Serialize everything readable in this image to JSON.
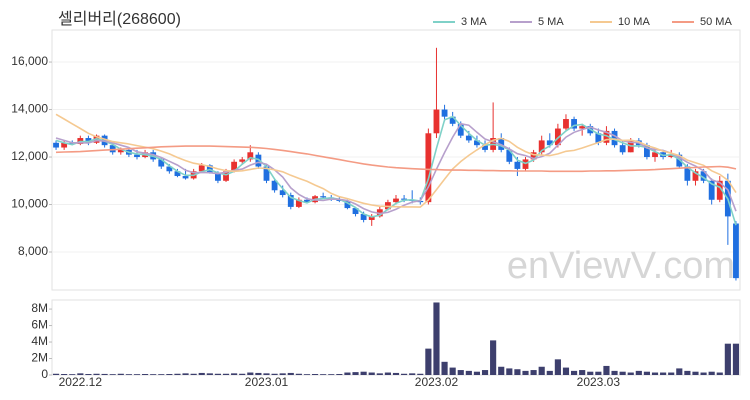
{
  "chart_data": [
    {
      "type": "candlestick",
      "title": "셀리버리(268600)",
      "watermark": "enViewV.com",
      "up_color": "#e8312f",
      "down_color": "#1f6fe0",
      "legend": "top-right",
      "grid": true,
      "ylim": [
        6400,
        17350
      ],
      "yticks": [
        {
          "value": 8000,
          "label": "8,000"
        },
        {
          "value": 10000,
          "label": "10,000"
        },
        {
          "value": 12000,
          "label": "12,000"
        },
        {
          "value": 14000,
          "label": "14,000"
        },
        {
          "value": 16000,
          "label": "16,000"
        }
      ],
      "open": [
        12600,
        12400,
        12600,
        12550,
        12800,
        12600,
        12900,
        12500,
        12200,
        12300,
        12100,
        12000,
        12200,
        11900,
        11600,
        11400,
        11200,
        11100,
        11400,
        11650,
        11350,
        11000,
        11400,
        11800,
        11900,
        12100,
        11600,
        11000,
        10600,
        10400,
        9900,
        10200,
        10100,
        10350,
        10300,
        10200,
        10150,
        9850,
        9600,
        9350,
        9500,
        9800,
        10100,
        10250,
        10200,
        10150,
        10100,
        13000,
        14000,
        13700,
        13400,
        12900,
        12700,
        12500,
        12300,
        12800,
        12300,
        11800,
        11500,
        11900,
        12200,
        12700,
        12500,
        13200,
        13600,
        13200,
        13300,
        13000,
        12600,
        13100,
        12500,
        12200,
        12700,
        12500,
        12000,
        12200,
        12000,
        12100,
        11600,
        11000,
        11400,
        11000,
        10200,
        11000,
        9200
      ],
      "high": [
        12700,
        12700,
        12700,
        12900,
        12900,
        12950,
        12950,
        12600,
        12400,
        12400,
        12300,
        12300,
        12300,
        12000,
        11700,
        11500,
        11500,
        11500,
        11750,
        11700,
        11400,
        11500,
        11900,
        12000,
        12500,
        12200,
        11700,
        11100,
        10800,
        10500,
        10300,
        10300,
        10400,
        10500,
        10400,
        10350,
        10200,
        9900,
        9700,
        9600,
        9900,
        10200,
        10400,
        10400,
        10600,
        10300,
        13200,
        16600,
        14200,
        13900,
        13500,
        13100,
        12900,
        12700,
        14300,
        13000,
        12400,
        12000,
        12000,
        12300,
        12900,
        13000,
        13400,
        13800,
        13700,
        13400,
        13400,
        13200,
        13300,
        13200,
        12700,
        12800,
        12800,
        12600,
        12300,
        12300,
        12300,
        12200,
        11700,
        11500,
        11500,
        11100,
        11200,
        11300,
        9300
      ],
      "low": [
        12300,
        12300,
        12500,
        12500,
        12500,
        12550,
        12400,
        12100,
        12100,
        12000,
        11900,
        11950,
        11800,
        11500,
        11300,
        11150,
        11050,
        11050,
        11350,
        11300,
        10900,
        10950,
        11350,
        11700,
        11800,
        11500,
        10900,
        10500,
        10300,
        9800,
        9850,
        10050,
        10050,
        10250,
        10150,
        10100,
        9800,
        9500,
        9250,
        9100,
        9450,
        9750,
        10000,
        10100,
        10050,
        10000,
        10000,
        12800,
        13500,
        13300,
        12800,
        12600,
        12400,
        12200,
        12200,
        12200,
        11700,
        11200,
        11400,
        11800,
        12100,
        12400,
        12400,
        13100,
        13100,
        12900,
        12900,
        12500,
        12500,
        12400,
        12100,
        12200,
        12400,
        11900,
        11800,
        11900,
        11950,
        11500,
        10800,
        10800,
        10900,
        10000,
        10100,
        8300,
        6800
      ],
      "close": [
        12400,
        12600,
        12550,
        12800,
        12600,
        12900,
        12500,
        12200,
        12300,
        12100,
        12000,
        12200,
        11900,
        11600,
        11400,
        11200,
        11100,
        11400,
        11650,
        11350,
        11000,
        11400,
        11800,
        11900,
        12200,
        11600,
        11000,
        10600,
        10400,
        9900,
        10200,
        10100,
        10350,
        10300,
        10200,
        10150,
        9850,
        9600,
        9350,
        9500,
        9800,
        10100,
        10250,
        10200,
        10150,
        10100,
        13000,
        14000,
        13700,
        13400,
        12900,
        12700,
        12500,
        12300,
        12800,
        12300,
        11800,
        11500,
        11900,
        12200,
        12700,
        12500,
        13200,
        13600,
        13200,
        13300,
        13000,
        12600,
        13100,
        12500,
        12200,
        12700,
        12500,
        12000,
        12200,
        12000,
        12100,
        11600,
        11000,
        11400,
        11000,
        10200,
        11000,
        9500,
        6900
      ],
      "series": [
        {
          "name": "3 MA",
          "color": "#7fd1c8",
          "values": [
            12700,
            12600,
            12520,
            12650,
            12650,
            12770,
            12670,
            12530,
            12330,
            12200,
            12130,
            12100,
            12030,
            11900,
            11630,
            11400,
            11230,
            11230,
            11380,
            11470,
            11330,
            11250,
            11400,
            11700,
            11970,
            11900,
            11600,
            11070,
            10670,
            10300,
            10170,
            10070,
            10220,
            10250,
            10280,
            10220,
            10070,
            9870,
            9600,
            9480,
            9550,
            9800,
            10050,
            10180,
            10200,
            10150,
            11080,
            12370,
            13570,
            13700,
            13330,
            13000,
            12700,
            12500,
            12530,
            12470,
            12300,
            11870,
            11730,
            11870,
            12270,
            12470,
            12800,
            13100,
            13330,
            13370,
            13170,
            12970,
            12900,
            12730,
            12600,
            12470,
            12470,
            12400,
            12230,
            12070,
            12100,
            11900,
            11570,
            11330,
            11130,
            10870,
            10730,
            10230,
            9130
          ]
        },
        {
          "name": "5 MA",
          "color": "#b7a0cc",
          "values": [
            12800,
            12700,
            12600,
            12600,
            12590,
            12690,
            12670,
            12600,
            12500,
            12400,
            12220,
            12160,
            12100,
            11980,
            11820,
            11660,
            11440,
            11340,
            11350,
            11340,
            11300,
            11360,
            11440,
            11490,
            11660,
            11780,
            11700,
            11460,
            11160,
            10700,
            10420,
            10240,
            10190,
            10170,
            10230,
            10220,
            10170,
            10020,
            9830,
            9690,
            9620,
            9670,
            9800,
            9970,
            10100,
            10160,
            10740,
            11490,
            12190,
            12840,
            13400,
            13340,
            13040,
            12760,
            12640,
            12520,
            12340,
            12140,
            12060,
            11940,
            12020,
            12160,
            12500,
            12840,
            13040,
            13160,
            13260,
            13140,
            13040,
            12900,
            12680,
            12620,
            12600,
            12380,
            12320,
            12280,
            12160,
            11980,
            11780,
            11620,
            11420,
            11040,
            10920,
            10620,
            9720
          ]
        },
        {
          "name": "10 MA",
          "color": "#f5c991",
          "values": [
            13800,
            13600,
            13400,
            13200,
            13000,
            12850,
            12750,
            12650,
            12600,
            12550,
            12480,
            12420,
            12350,
            12250,
            12130,
            11980,
            11850,
            11740,
            11680,
            11600,
            11500,
            11430,
            11400,
            11420,
            11480,
            11540,
            11520,
            11460,
            11380,
            11230,
            11100,
            10980,
            10820,
            10670,
            10470,
            10330,
            10250,
            10150,
            10050,
            9980,
            9930,
            9920,
            9910,
            9900,
            9900,
            9890,
            10190,
            10630,
            11070,
            11500,
            11810,
            12070,
            12300,
            12520,
            12710,
            12790,
            12660,
            12410,
            12230,
            12100,
            12080,
            12060,
            12130,
            12240,
            12280,
            12380,
            12500,
            12610,
            12730,
            12760,
            12700,
            12710,
            12640,
            12480,
            12380,
            12250,
            12160,
            12060,
            11870,
            11760,
            11650,
            11420,
            11270,
            11020,
            10500
          ]
        },
        {
          "name": "50 MA",
          "color": "#f49b84",
          "values": [
            12200,
            12210,
            12220,
            12230,
            12250,
            12270,
            12290,
            12310,
            12330,
            12350,
            12370,
            12390,
            12410,
            12430,
            12440,
            12450,
            12460,
            12460,
            12460,
            12460,
            12450,
            12440,
            12430,
            12420,
            12410,
            12390,
            12360,
            12320,
            12280,
            12230,
            12180,
            12130,
            12070,
            12010,
            11950,
            11890,
            11830,
            11770,
            11710,
            11660,
            11620,
            11580,
            11550,
            11530,
            11510,
            11490,
            11480,
            11470,
            11460,
            11450,
            11450,
            11440,
            11440,
            11430,
            11430,
            11420,
            11420,
            11410,
            11410,
            11410,
            11410,
            11400,
            11400,
            11400,
            11400,
            11400,
            11410,
            11410,
            11420,
            11420,
            11430,
            11440,
            11450,
            11460,
            11470,
            11490,
            11510,
            11530,
            11550,
            11560,
            11580,
            11590,
            11600,
            11570,
            11500
          ]
        }
      ]
    },
    {
      "type": "bar",
      "color": "#3d3f6d",
      "ylim": [
        0,
        9100000
      ],
      "yticks": [
        0,
        {
          "value": 2000000,
          "label": "2M"
        },
        {
          "value": 4000000,
          "label": "4M"
        },
        {
          "value": 6000000,
          "label": "6M"
        },
        {
          "value": 8000000,
          "label": "8M"
        }
      ],
      "categories": [
        null,
        null,
        null,
        "2022.12",
        null,
        null,
        null,
        null,
        null,
        null,
        null,
        null,
        null,
        null,
        null,
        null,
        null,
        null,
        null,
        null,
        null,
        null,
        null,
        null,
        null,
        null,
        "2023.01",
        null,
        null,
        null,
        null,
        null,
        null,
        null,
        null,
        null,
        null,
        null,
        null,
        null,
        null,
        null,
        null,
        null,
        null,
        null,
        null,
        "2023.02",
        null,
        null,
        null,
        null,
        null,
        null,
        null,
        null,
        null,
        null,
        null,
        null,
        null,
        null,
        null,
        null,
        null,
        null,
        null,
        "2023.03",
        null,
        null,
        null,
        null,
        null,
        null,
        null,
        null,
        null,
        null,
        null,
        null,
        null,
        null,
        null,
        null,
        null
      ],
      "values": [
        150000,
        120000,
        100000,
        200000,
        120000,
        150000,
        130000,
        100000,
        150000,
        100000,
        100000,
        120000,
        100000,
        100000,
        120000,
        150000,
        200000,
        150000,
        250000,
        200000,
        150000,
        150000,
        200000,
        150000,
        300000,
        250000,
        200000,
        150000,
        200000,
        250000,
        150000,
        100000,
        120000,
        100000,
        100000,
        120000,
        300000,
        350000,
        400000,
        300000,
        200000,
        300000,
        250000,
        150000,
        200000,
        150000,
        3200000,
        8800000,
        1600000,
        900000,
        600000,
        500000,
        400000,
        600000,
        4200000,
        1000000,
        800000,
        700000,
        500000,
        600000,
        1000000,
        500000,
        1900000,
        900000,
        500000,
        600000,
        400000,
        400000,
        1100000,
        500000,
        400000,
        300000,
        500000,
        400000,
        300000,
        300000,
        300000,
        800000,
        500000,
        400000,
        300000,
        400000,
        300000,
        3800000,
        3800000
      ]
    }
  ]
}
